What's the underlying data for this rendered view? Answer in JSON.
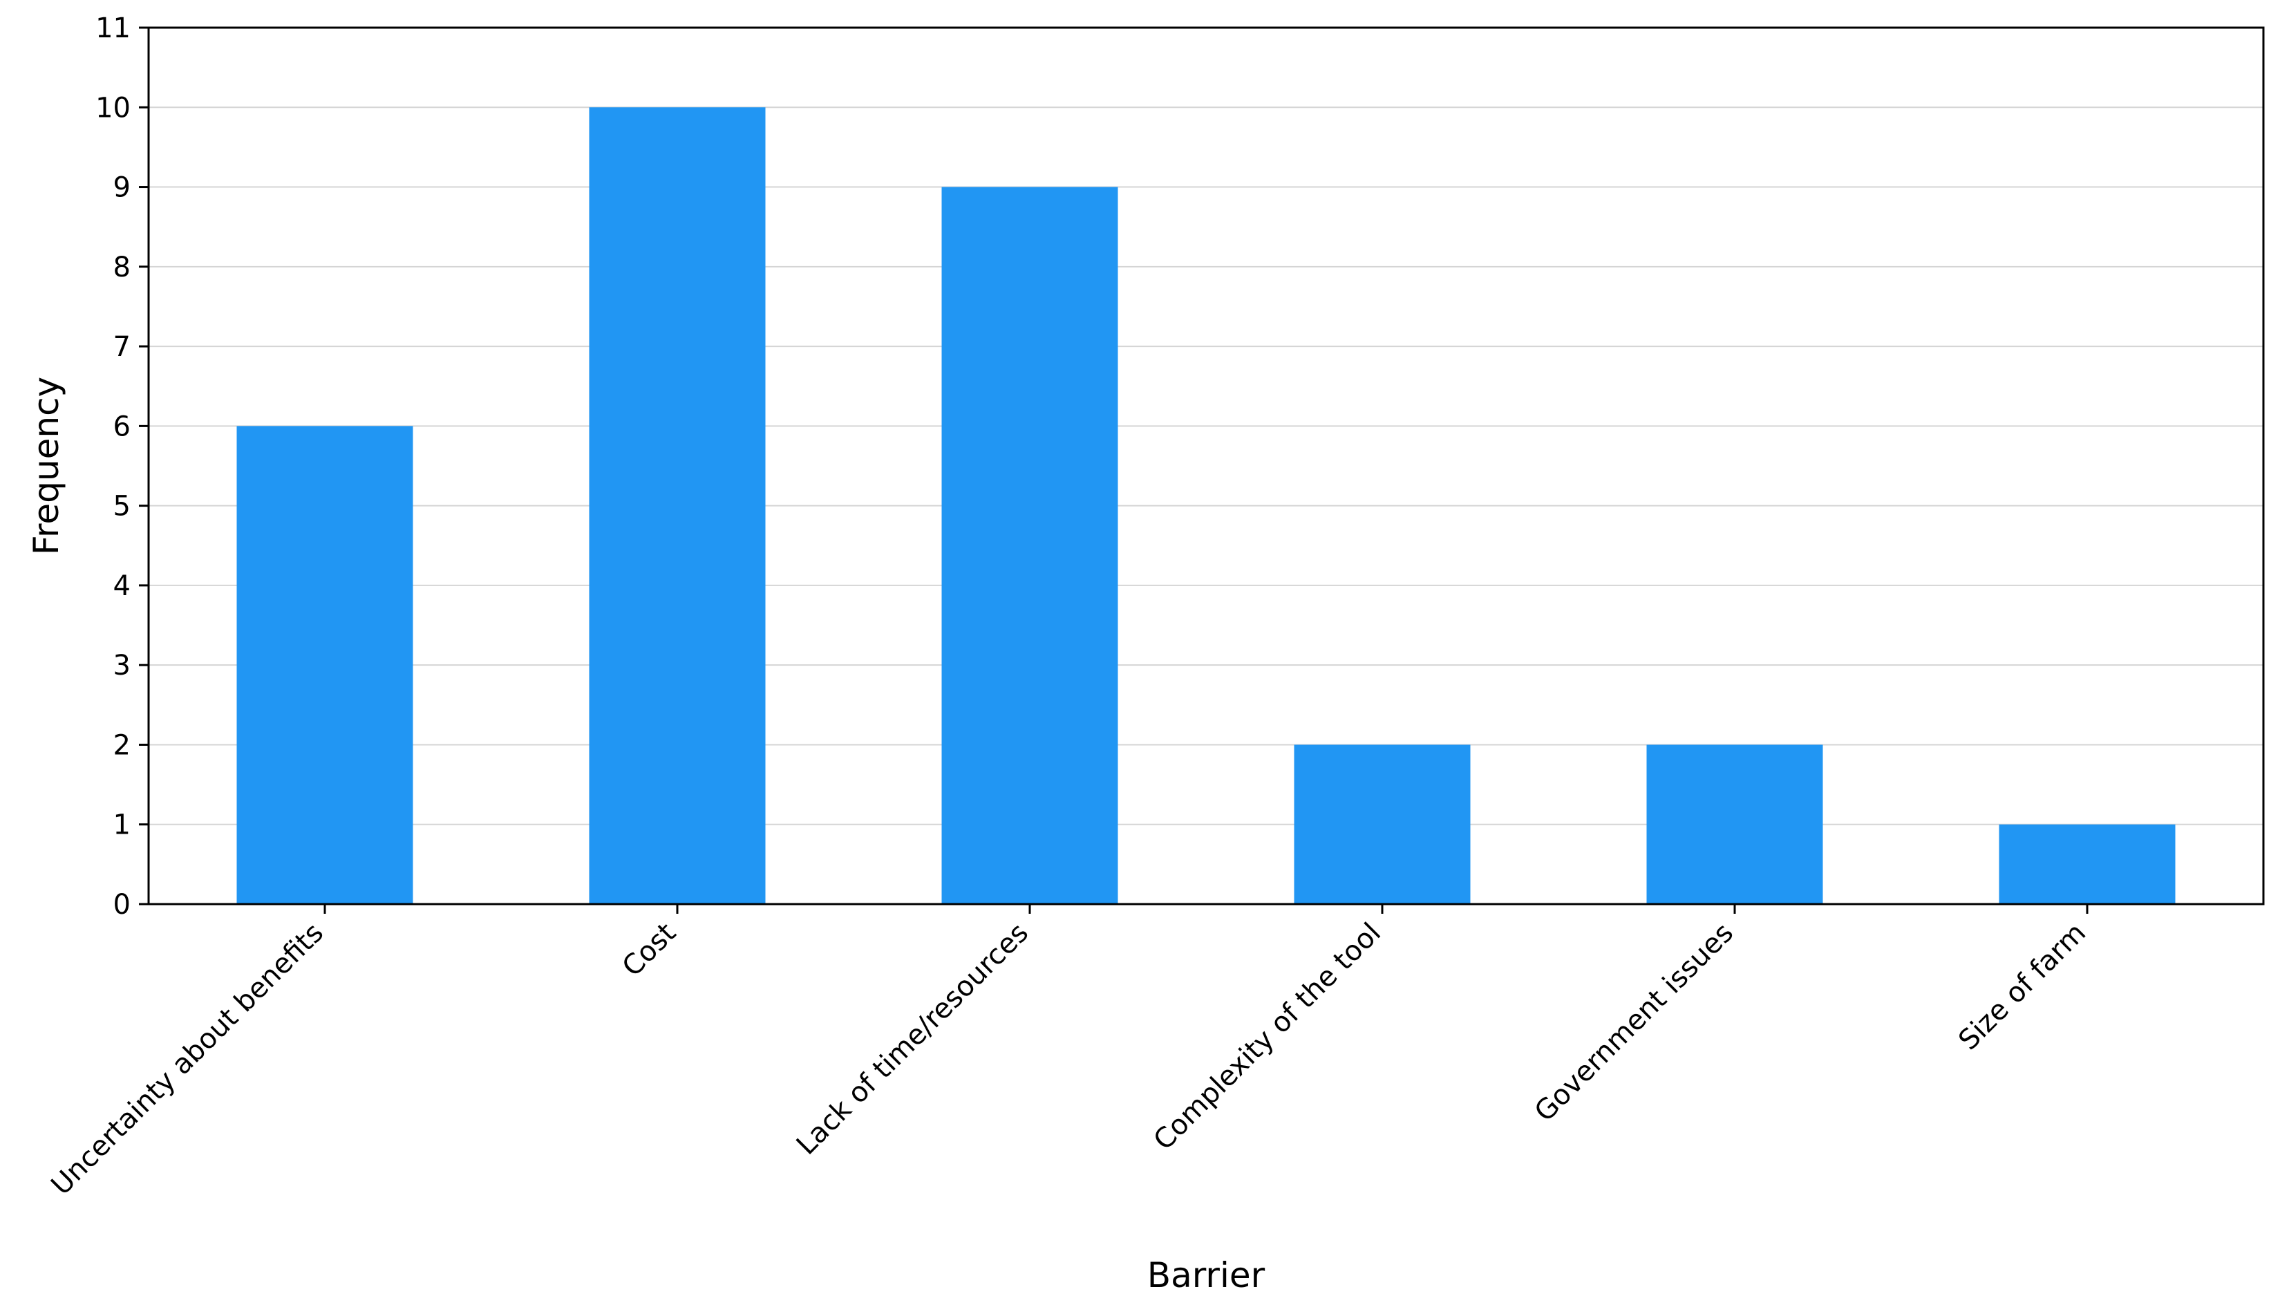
{
  "chart_data": {
    "type": "bar",
    "title": "",
    "xlabel": "Barrier",
    "ylabel": "Frequency",
    "categories": [
      "Uncertainty about benefits",
      "Cost",
      "Lack of time/resources",
      "Complexity of the tool",
      "Government issues",
      "Size of farm"
    ],
    "values": [
      6,
      10,
      9,
      2,
      2,
      1
    ],
    "ylim": [
      0,
      11
    ],
    "yticks": [
      0,
      1,
      2,
      3,
      4,
      5,
      6,
      7,
      8,
      9,
      10,
      11
    ],
    "grid": "horizontal",
    "legend": "none",
    "bar_color": "#2196f3",
    "grid_color": "#d5d5d5"
  }
}
